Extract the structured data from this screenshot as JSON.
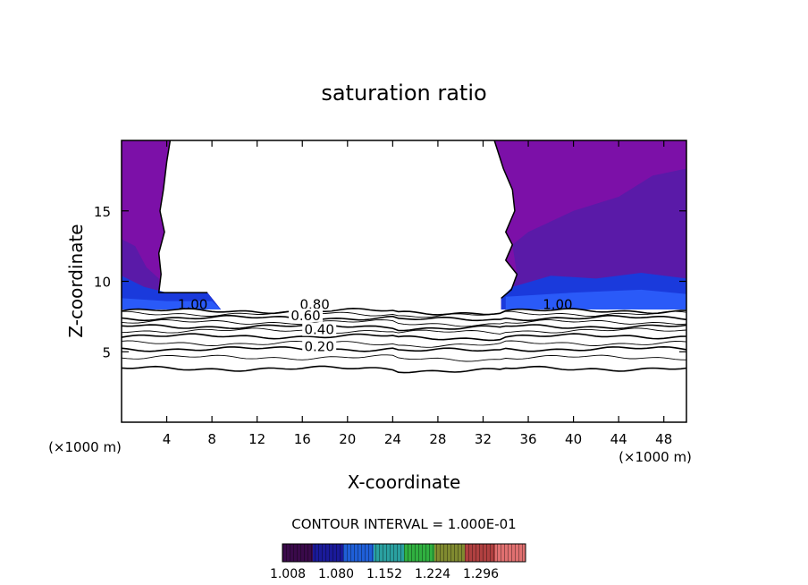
{
  "chart_data": {
    "type": "contour",
    "title": "saturation ratio",
    "xlabel": "X-coordinate",
    "ylabel": "Z-coordinate",
    "x_unit": "(×1000 m)",
    "y_unit": "(×1000 m)",
    "xlim": [
      0,
      50
    ],
    "ylim": [
      0,
      20
    ],
    "x_ticks": [
      4,
      8,
      12,
      16,
      20,
      24,
      28,
      32,
      36,
      40,
      44,
      48
    ],
    "y_ticks": [
      5,
      10,
      15
    ],
    "contour_interval_text": "CONTOUR INTERVAL = 1.000E-01",
    "colorbar": {
      "labels": [
        "1.008",
        "1.080",
        "1.152",
        "1.224",
        "1.296"
      ],
      "colors": [
        "#3a0a4a",
        "#1a1a9a",
        "#1f5fd8",
        "#2aa0a0",
        "#30b040",
        "#808a30",
        "#b04040",
        "#e07070"
      ]
    },
    "contour_labels": [
      {
        "text": "1.00",
        "x": 6.3,
        "z": 8.3
      },
      {
        "text": "0.80",
        "x": 17.1,
        "z": 8.3
      },
      {
        "text": "0.60",
        "x": 16.3,
        "z": 7.5
      },
      {
        "text": "0.40",
        "x": 17.5,
        "z": 6.5
      },
      {
        "text": "0.20",
        "x": 17.5,
        "z": 5.3
      },
      {
        "text": "1.00",
        "x": 38.6,
        "z": 8.3
      }
    ],
    "contours": [
      {
        "value": 1.0,
        "z": 7.9
      },
      {
        "value": 0.9,
        "z": 7.7
      },
      {
        "value": 0.8,
        "z": 7.4
      },
      {
        "value": 0.7,
        "z": 7.1
      },
      {
        "value": 0.6,
        "z": 6.8
      },
      {
        "value": 0.5,
        "z": 6.5
      },
      {
        "value": 0.4,
        "z": 6.1
      },
      {
        "value": 0.3,
        "z": 5.6
      },
      {
        "value": 0.2,
        "z": 5.2
      },
      {
        "value": 0.1,
        "z": 4.6
      },
      {
        "value": 0.0,
        "z": 3.8
      }
    ],
    "colors": {
      "purple": "#7c10a8",
      "deep_purple": "#5a1aa8",
      "blue": "#1a3adc",
      "bright_blue": "#2a5af8"
    }
  }
}
